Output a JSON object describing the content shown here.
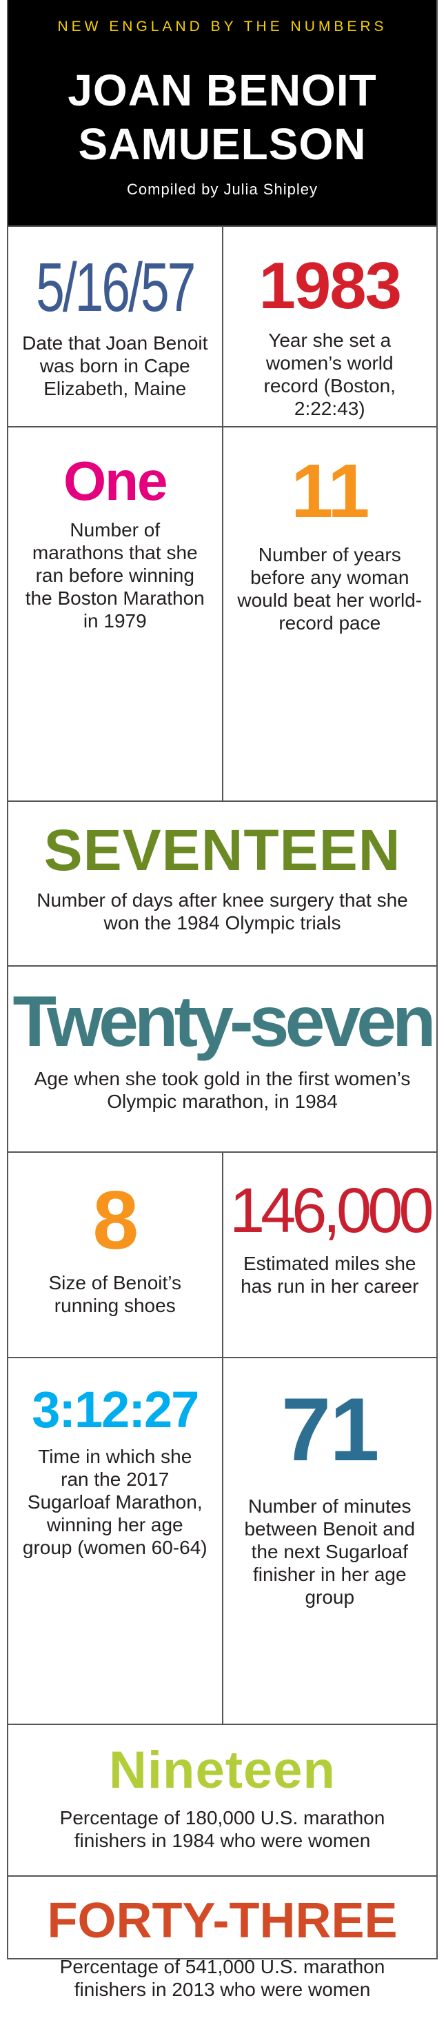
{
  "header": {
    "kicker": "NEW ENGLAND BY THE NUMBERS",
    "title_line1": "JOAN BENOIT",
    "title_line2": "SAMUELSON",
    "byline": "Compiled by Julia Shipley"
  },
  "facts": [
    {
      "value": "5/16/57",
      "desc": "Date that Joan Benoit was born in Cape Elizabeth, Maine",
      "color": "#3d5a91"
    },
    {
      "value": "1983",
      "desc": "Year she set a women’s world record (Boston, 2:22:43)",
      "color": "#d3202a"
    },
    {
      "value": "One",
      "desc": "Number of marathons that she ran before winning the Boston Marathon in 1979",
      "color": "#e5007d"
    },
    {
      "value": "11",
      "desc": "Number of years before any woman would beat her world-record pace",
      "color": "#f7941d"
    },
    {
      "value": "SEVENTEEN",
      "desc": "Number of days after knee surgery that she won the 1984 Olympic trials",
      "color": "#6b8a23"
    },
    {
      "value": "Twenty-seven",
      "desc": "Age when she took gold in the first women’s Olympic marathon, in 1984",
      "color": "#3f7b80"
    },
    {
      "value": "8",
      "desc": "Size of Benoit’s running shoes",
      "color": "#f7941d"
    },
    {
      "value": "146,000",
      "desc": "Estimated miles she has run in her career",
      "color": "#c8202f"
    },
    {
      "value": "3:12:27",
      "desc": "Time in which she ran the 2017 Sugarloaf Marathon, winning her age group (women 60-64)",
      "color": "#00aeef"
    },
    {
      "value": "71",
      "desc": "Number of minutes between Benoit and the next Sugarloaf finisher in her age group",
      "color": "#2d6f92"
    },
    {
      "value": "Nineteen",
      "desc": "Percentage of 180,000 U.S. marathon finishers in 1984 who were women",
      "color": "#b3cd3a"
    },
    {
      "value": "FORTY-THREE",
      "desc": "Percentage of 541,000 U.S. marathon finishers in 2013 who were women",
      "color": "#d24b26"
    }
  ]
}
